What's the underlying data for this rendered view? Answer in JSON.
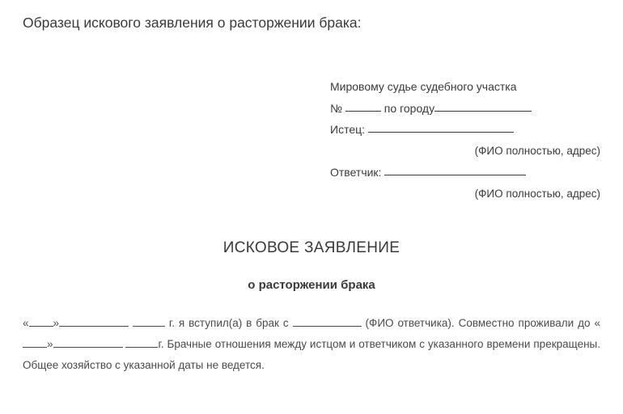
{
  "heading": "Образец искового заявления о расторжении брака:",
  "addressee": {
    "line1_prefix": "Мировому судье судебного участка",
    "line2_num_label": "№ ",
    "line2_mid": " по городу",
    "plaintiff_label": "Истец: ",
    "hint": "(ФИО полностью, адрес)",
    "defendant_label": "Ответчик: "
  },
  "title": "ИСКОВОЕ ЗАЯВЛЕНИЕ",
  "subtitle": "о расторжении брака",
  "body": {
    "frag1": "«",
    "frag2": "»",
    "frag3": " г.  я  вступил(а)  в  брак  с  ",
    "frag4": "  (ФИО  ответчика).  Совместно  проживали  до «",
    "frag5": "»",
    "frag6": "г.  Брачные  отношения  между  истцом  и  ответчиком  с  указанного  времени прекращены. Общее хозяйство с указанной даты не ведется."
  },
  "blank_widths": {
    "num": 44,
    "city": 120,
    "plaintiff": 180,
    "defendant": 175,
    "day": 30,
    "month": 86,
    "year": 40,
    "fio": 85,
    "day2": 30,
    "month2": 86,
    "year2": 40
  }
}
